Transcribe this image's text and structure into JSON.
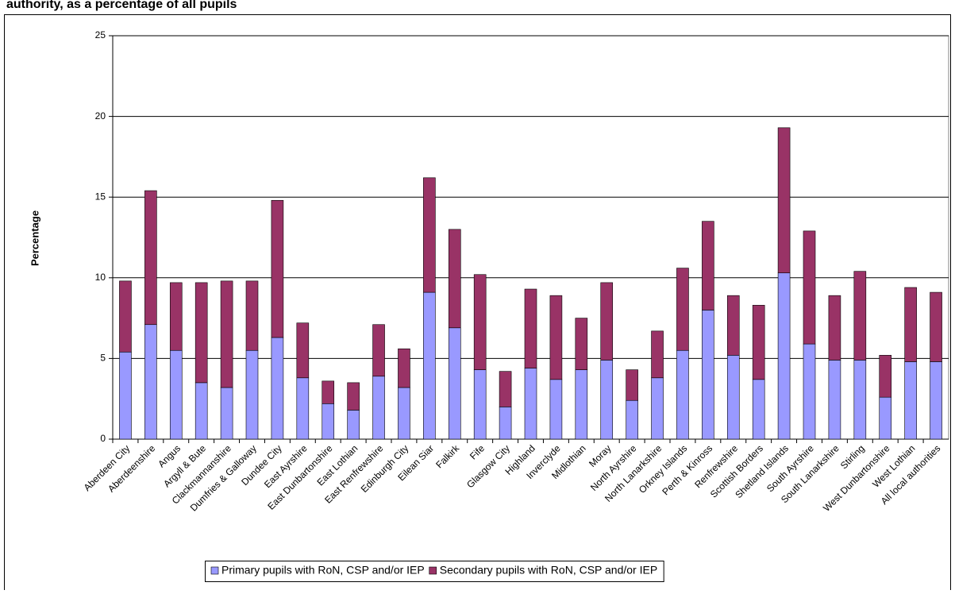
{
  "chart_data": {
    "type": "stacked_bar",
    "title": "authority, as a percentage of all pupils",
    "y_label": "Percentage",
    "categories": [
      "Aberdeen City",
      "Aberdeenshire",
      "Angus",
      "Argyll & Bute",
      "Clackmannanshire",
      "Dumfries & Galloway",
      "Dundee City",
      "East Ayrshire",
      "East Dunbartonshire",
      "East Lothian",
      "East Renfrewshire",
      "Edinburgh City",
      "Eilean Siar",
      "Falkirk",
      "Fife",
      "Glasgow City",
      "Highland",
      "Inverclyde",
      "Midlothian",
      "Moray",
      "North Ayrshire",
      "North Lanarkshire",
      "Orkney Islands",
      "Perth & Kinross",
      "Renfrewshire",
      "Scottish Borders",
      "Shetland Islands",
      "South Ayrshire",
      "South Lanarkshire",
      "Stirling",
      "West Dunbartonshire",
      "West Lothian",
      "All local authorities"
    ],
    "series": [
      {
        "name": "Primary pupils with RoN, CSP and/or IEP",
        "color": "#9999ff",
        "values": [
          5.4,
          7.1,
          5.5,
          3.5,
          3.2,
          5.5,
          6.3,
          3.8,
          2.2,
          1.8,
          3.9,
          3.2,
          9.1,
          6.9,
          4.3,
          2.0,
          4.4,
          3.7,
          4.3,
          4.9,
          2.4,
          3.8,
          5.5,
          8.0,
          5.2,
          3.7,
          10.3,
          5.9,
          4.9,
          4.9,
          2.6,
          4.8,
          4.8
        ]
      },
      {
        "name": "Secondary pupils with RoN, CSP and/or IEP",
        "color": "#993366",
        "values": [
          4.4,
          8.3,
          4.2,
          6.2,
          6.6,
          4.3,
          8.5,
          3.4,
          1.4,
          1.7,
          3.2,
          2.4,
          7.1,
          6.1,
          5.9,
          2.2,
          4.9,
          5.2,
          3.2,
          4.8,
          1.9,
          2.9,
          5.1,
          5.5,
          3.7,
          4.6,
          9.0,
          7.0,
          4.0,
          5.5,
          2.6,
          4.6,
          4.3
        ]
      }
    ],
    "ylim": [
      0,
      25
    ],
    "yticks": [
      0,
      5,
      10,
      15,
      20,
      25
    ],
    "grid": true,
    "legend": "bottom"
  }
}
